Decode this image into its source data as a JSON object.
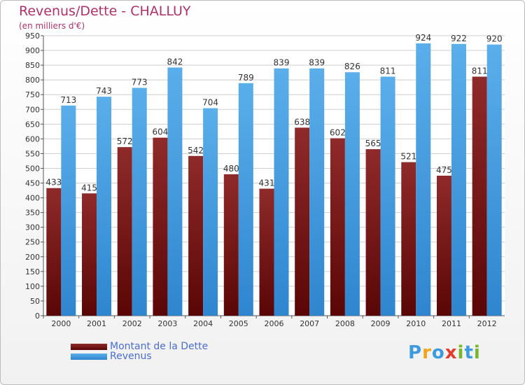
{
  "chart_data": {
    "type": "bar",
    "title": "Revenus/Dette - CHALLUY",
    "subtitle": "(en milliers d'€)",
    "categories": [
      "2000",
      "2001",
      "2002",
      "2003",
      "2004",
      "2005",
      "2006",
      "2007",
      "2008",
      "2009",
      "2010",
      "2011",
      "2012"
    ],
    "series": [
      {
        "name": "Montant de la Dette",
        "color": "#7a1010",
        "values": [
          433,
          415,
          572,
          604,
          542,
          480,
          431,
          638,
          602,
          565,
          521,
          475,
          811
        ]
      },
      {
        "name": "Revenus",
        "color": "#3d9be0",
        "values": [
          713,
          743,
          773,
          842,
          704,
          789,
          839,
          839,
          826,
          811,
          924,
          922,
          920
        ]
      }
    ],
    "ylim": [
      0,
      950
    ],
    "ytick_step": 50,
    "grid": true,
    "legend_position": "bottom-left"
  },
  "logo": {
    "text": "Proxiti",
    "letters": [
      "P",
      "r",
      "o",
      "x",
      "i",
      "t",
      "i"
    ],
    "colors": [
      "#3d9be0",
      "#f3a21c",
      "#3d9be0",
      "#e43b2c",
      "#76b82a",
      "#3d9be0",
      "#76b82a"
    ]
  },
  "colors": {
    "title": "#b0306a",
    "legend_text": "#4a6ed3",
    "grid": "#cfcfcf"
  }
}
